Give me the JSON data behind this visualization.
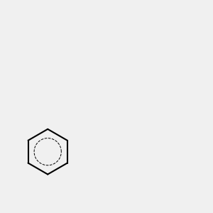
{
  "background_color": "#f0f0f0",
  "bond_color": "#000000",
  "carbon_color": "#000000",
  "nitrogen_color": "#0000ff",
  "oxygen_color": "#ff0000",
  "sulfur_color": "#ccaa00",
  "hydrogen_color": "#000000",
  "figsize": [
    3.0,
    3.0
  ],
  "dpi": 100
}
